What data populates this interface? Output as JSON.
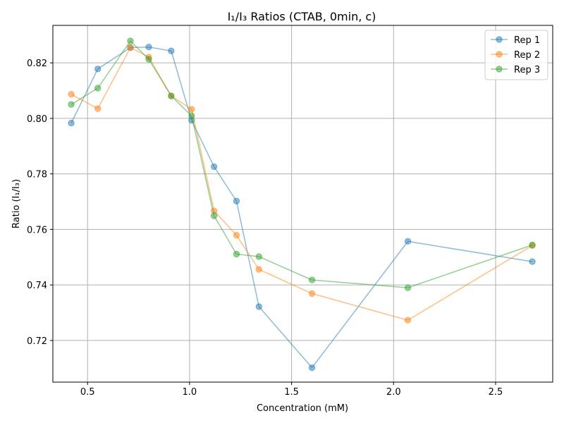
{
  "chart_data": {
    "type": "line",
    "title": "I₁/I₃ Ratios (CTAB, 0min, c)",
    "xlabel": "Concentration (mM)",
    "ylabel": "Ratio (I₁/I₃)",
    "xlim": [
      0.33,
      2.78
    ],
    "ylim": [
      0.705,
      0.8335
    ],
    "xticks": [
      0.5,
      1.0,
      1.5,
      2.0,
      2.5
    ],
    "xtick_labels": [
      "0.5",
      "1.0",
      "1.5",
      "2.0",
      "2.5"
    ],
    "yticks": [
      0.72,
      0.74,
      0.76,
      0.78,
      0.8,
      0.82
    ],
    "ytick_labels": [
      "0.72",
      "0.74",
      "0.76",
      "0.78",
      "0.80",
      "0.82"
    ],
    "grid": true,
    "legend_position": "top-right",
    "series": [
      {
        "name": "Rep 1",
        "color": "#1f77b4",
        "x": [
          0.42,
          0.55,
          0.71,
          0.8,
          0.91,
          1.01,
          1.12,
          1.23,
          1.34,
          1.6,
          2.07,
          2.68
        ],
        "y": [
          0.7983,
          0.8178,
          0.8255,
          0.8257,
          0.8243,
          0.7993,
          0.7826,
          0.7702,
          0.7322,
          0.7102,
          0.7557,
          0.7484
        ]
      },
      {
        "name": "Rep 2",
        "color": "#ff7f0e",
        "x": [
          0.42,
          0.55,
          0.71,
          0.8,
          0.91,
          1.01,
          1.12,
          1.23,
          1.34,
          1.6,
          2.07,
          2.68
        ],
        "y": [
          0.8087,
          0.8035,
          0.8255,
          0.8221,
          0.8081,
          0.8033,
          0.7667,
          0.7579,
          0.7456,
          0.7369,
          0.7273,
          0.7542
        ]
      },
      {
        "name": "Rep 3",
        "color": "#2ca02c",
        "x": [
          0.42,
          0.55,
          0.71,
          0.8,
          0.91,
          1.01,
          1.12,
          1.23,
          1.34,
          1.6,
          2.07,
          2.68
        ],
        "y": [
          0.805,
          0.8109,
          0.8279,
          0.8213,
          0.8081,
          0.8009,
          0.7649,
          0.7511,
          0.7502,
          0.7418,
          0.739,
          0.7544
        ]
      }
    ]
  }
}
